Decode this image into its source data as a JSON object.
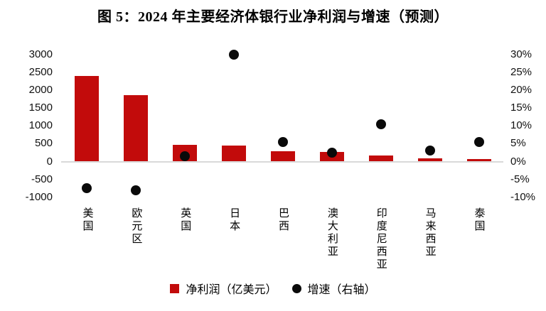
{
  "figure": {
    "title": "图 5：2024 年主要经济体银行业净利润与增速（预测）"
  },
  "legend": {
    "bar_label": "净利润（亿美元）",
    "dot_label": "增速（右轴）",
    "position": "bottom-center"
  },
  "colors": {
    "bar": "#c20b0b",
    "dot": "#0a0a0a",
    "zero_line": "#d9d9d9",
    "text": "#000000"
  },
  "chart_data": {
    "type": "bar",
    "subtype": "combo bar + scatter, dual axis",
    "title": "图 5：2024 年主要经济体银行业净利润与增速（预测）",
    "categories": [
      "美国",
      "欧元区",
      "英国",
      "日本",
      "巴西",
      "澳大利亚",
      "印度尼西亚",
      "马来西亚",
      "泰国"
    ],
    "series": [
      {
        "name": "净利润（亿美元）",
        "type": "bar",
        "axis": "left",
        "values": [
          2400,
          1860,
          460,
          450,
          290,
          270,
          170,
          90,
          65
        ]
      },
      {
        "name": "增速（右轴）",
        "type": "scatter",
        "axis": "right",
        "values_pct": [
          -7.5,
          -8,
          1.5,
          30,
          5.5,
          2.5,
          10.5,
          3,
          5.5
        ]
      }
    ],
    "left_axis": {
      "min": -1000,
      "max": 3000,
      "step": 500,
      "ticks": [
        "3000",
        "2500",
        "2000",
        "1500",
        "1000",
        "500",
        "0",
        "-500",
        "-1000"
      ]
    },
    "right_axis": {
      "min": -10,
      "max": 30,
      "step": 5,
      "ticks": [
        "30%",
        "25%",
        "20%",
        "15%",
        "10%",
        "5%",
        "0%",
        "-5%",
        "-10%"
      ]
    },
    "grid": "off (only zero gridline shown)",
    "x_label_orientation": "vertical",
    "legend_position": "bottom"
  }
}
